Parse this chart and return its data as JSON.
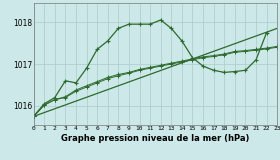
{
  "title": "Graphe pression niveau de la mer (hPa)",
  "bg_color": "#cce8e8",
  "grid_color": "#aacccc",
  "line_color": "#2d6a2d",
  "xlim": [
    0,
    23
  ],
  "ylim": [
    1015.55,
    1018.45
  ],
  "yticks": [
    1016,
    1017,
    1018
  ],
  "xticks": [
    0,
    1,
    2,
    3,
    4,
    5,
    6,
    7,
    8,
    9,
    10,
    11,
    12,
    13,
    14,
    15,
    16,
    17,
    18,
    19,
    20,
    21,
    22,
    23
  ],
  "series_peaked": {
    "x": [
      0,
      1,
      2,
      3,
      4,
      5,
      6,
      7,
      8,
      9,
      10,
      11,
      12,
      13,
      14,
      15,
      16,
      17,
      18,
      19,
      20,
      21,
      22,
      23
    ],
    "y": [
      1015.75,
      1016.05,
      1016.2,
      1016.6,
      1016.55,
      1016.9,
      1017.35,
      1017.55,
      1017.85,
      1017.95,
      1017.95,
      1017.95,
      1018.05,
      1017.85,
      1017.55,
      1017.15,
      1016.95,
      1016.85,
      1016.8,
      1016.82,
      1016.85,
      1017.1,
      1017.75,
      null
    ]
  },
  "series_diagonal": {
    "x": [
      0,
      23
    ],
    "y": [
      1015.75,
      1017.85
    ]
  },
  "series_flat1": {
    "x": [
      0,
      1,
      2,
      3,
      4,
      5,
      6,
      7,
      8,
      9,
      10,
      11,
      12,
      13,
      14,
      15,
      16,
      17,
      18,
      19,
      20,
      21,
      22,
      23
    ],
    "y": [
      1015.75,
      1016.02,
      1016.15,
      1016.2,
      1016.35,
      1016.45,
      1016.55,
      1016.65,
      1016.72,
      1016.78,
      1016.85,
      1016.9,
      1016.95,
      1017.0,
      1017.05,
      1017.1,
      1017.15,
      1017.18,
      1017.22,
      1017.28,
      1017.3,
      1017.33,
      1017.36,
      1017.4
    ]
  },
  "series_flat2": {
    "x": [
      0,
      1,
      2,
      3,
      4,
      5,
      6,
      7,
      8,
      9,
      10,
      11,
      12,
      13,
      14,
      15,
      16,
      17,
      18,
      19,
      20,
      21,
      22,
      23
    ],
    "y": [
      1015.75,
      1016.02,
      1016.15,
      1016.22,
      1016.38,
      1016.48,
      1016.58,
      1016.68,
      1016.75,
      1016.8,
      1016.87,
      1016.92,
      1016.97,
      1017.02,
      1017.07,
      1017.12,
      1017.17,
      1017.2,
      1017.24,
      1017.3,
      1017.32,
      1017.35,
      1017.38,
      1017.42
    ]
  }
}
